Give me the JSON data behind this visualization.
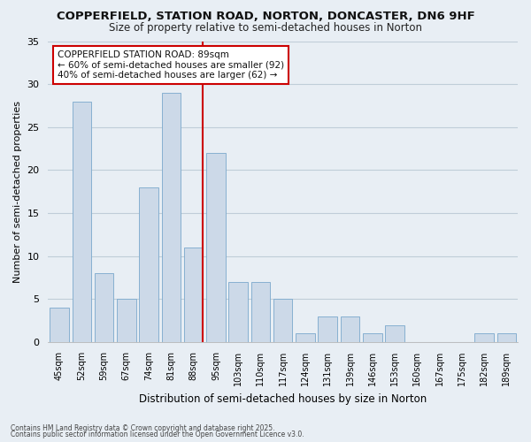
{
  "title": "COPPERFIELD, STATION ROAD, NORTON, DONCASTER, DN6 9HF",
  "subtitle": "Size of property relative to semi-detached houses in Norton",
  "xlabel": "Distribution of semi-detached houses by size in Norton",
  "ylabel": "Number of semi-detached properties",
  "bar_labels": [
    "45sqm",
    "52sqm",
    "59sqm",
    "67sqm",
    "74sqm",
    "81sqm",
    "88sqm",
    "95sqm",
    "103sqm",
    "110sqm",
    "117sqm",
    "124sqm",
    "131sqm",
    "139sqm",
    "146sqm",
    "153sqm",
    "160sqm",
    "167sqm",
    "175sqm",
    "182sqm",
    "189sqm"
  ],
  "bar_values": [
    4,
    28,
    8,
    5,
    18,
    29,
    11,
    22,
    7,
    7,
    5,
    1,
    3,
    3,
    1,
    2,
    0,
    0,
    0,
    1,
    1
  ],
  "highlight_index": 6,
  "bar_color": "#ccd9e8",
  "bar_edge_color": "#7aa8cc",
  "highlight_line_color": "#cc0000",
  "ylim": [
    0,
    35
  ],
  "yticks": [
    0,
    5,
    10,
    15,
    20,
    25,
    30,
    35
  ],
  "annotation_title": "COPPERFIELD STATION ROAD: 89sqm",
  "annotation_line1": "← 60% of semi-detached houses are smaller (92)",
  "annotation_line2": "40% of semi-detached houses are larger (62) →",
  "footnote1": "Contains HM Land Registry data © Crown copyright and database right 2025.",
  "footnote2": "Contains public sector information licensed under the Open Government Licence v3.0.",
  "bg_color": "#e8eef4",
  "plot_bg_color": "#e8eef4",
  "grid_color": "#c0cdd8"
}
